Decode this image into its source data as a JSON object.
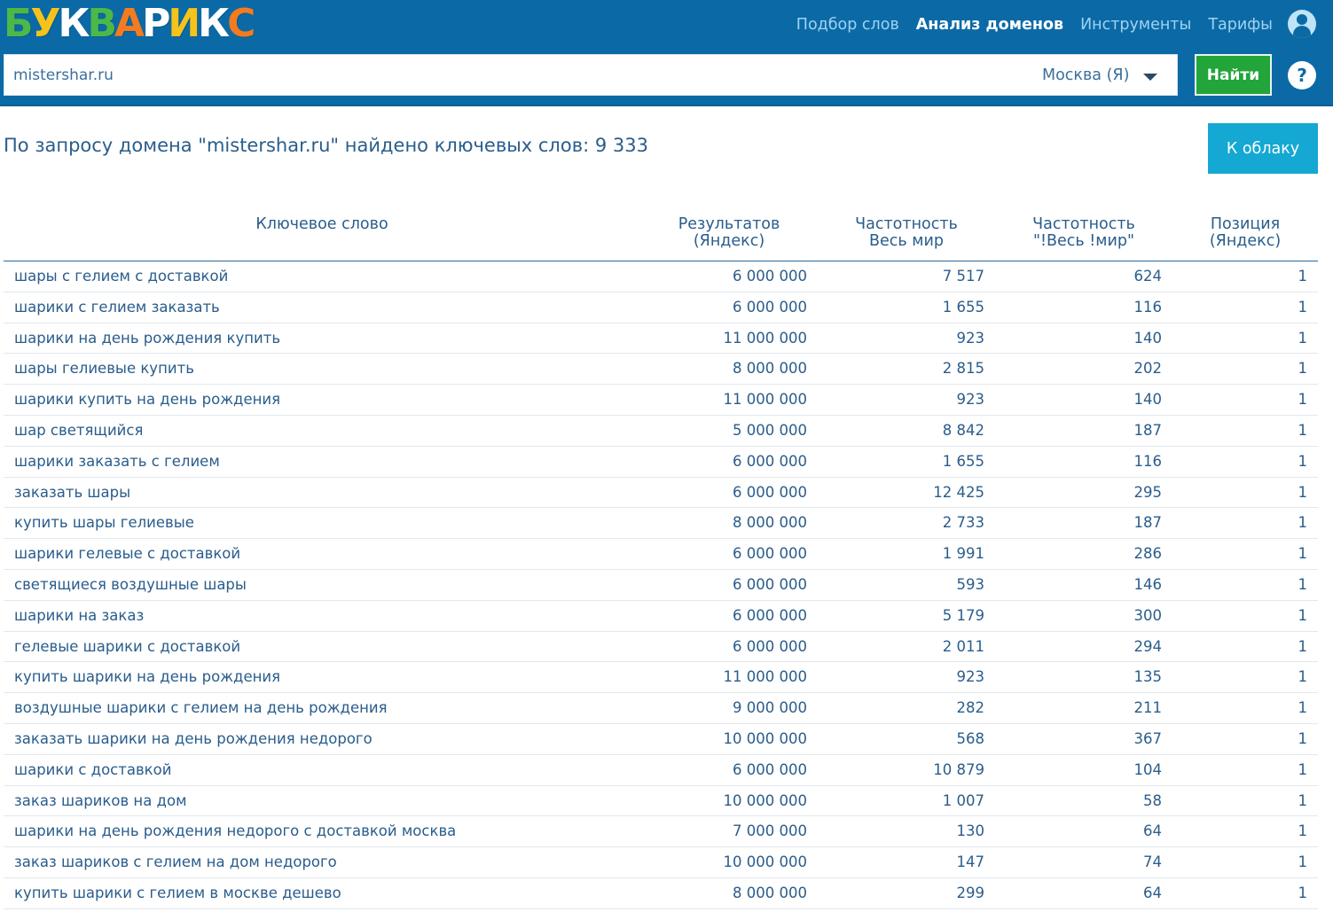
{
  "header": {
    "logo_letters": [
      {
        "char": "Б",
        "color": "#4cb848"
      },
      {
        "char": "У",
        "color": "#f6c31b"
      },
      {
        "char": "К",
        "color": "#ffffff"
      },
      {
        "char": "В",
        "color": "#4cb848"
      },
      {
        "char": "А",
        "color": "#f47b20"
      },
      {
        "char": "Р",
        "color": "#ffffff"
      },
      {
        "char": "И",
        "color": "#f6c31b"
      },
      {
        "char": "К",
        "color": "#ffffff"
      },
      {
        "char": "С",
        "color": "#f47b20"
      }
    ],
    "nav": [
      {
        "label": "Подбор слов",
        "active": false
      },
      {
        "label": "Анализ доменов",
        "active": true
      },
      {
        "label": "Инструменты",
        "active": false
      },
      {
        "label": "Тарифы",
        "active": false
      }
    ],
    "user_icon": "user-icon"
  },
  "search": {
    "value": "mistershar.ru",
    "region": "Москва (Я)",
    "find_label": "Найти",
    "help_label": "?"
  },
  "result_text": "По запросу домена \"mistershar.ru\" найдено ключевых слов: 9 333",
  "cloud_label": "К облаку",
  "table": {
    "headers": {
      "keyword": "Ключевое слово",
      "results": "Результатов\n(Яндекс)",
      "freq": "Частотность\nВесь мир",
      "freq_exact": "Частотность\n\"!Весь !мир\"",
      "position": "Позиция\n(Яндекс)"
    },
    "rows": [
      [
        "шары с гелием с доставкой",
        "6 000 000",
        "7 517",
        "624",
        "1"
      ],
      [
        "шарики с гелием заказать",
        "6 000 000",
        "1 655",
        "116",
        "1"
      ],
      [
        "шарики на день рождения купить",
        "11 000 000",
        "923",
        "140",
        "1"
      ],
      [
        "шары гелиевые купить",
        "8 000 000",
        "2 815",
        "202",
        "1"
      ],
      [
        "шарики купить на день рождения",
        "11 000 000",
        "923",
        "140",
        "1"
      ],
      [
        "шар светящийся",
        "5 000 000",
        "8 842",
        "187",
        "1"
      ],
      [
        "шарики заказать с гелием",
        "6 000 000",
        "1 655",
        "116",
        "1"
      ],
      [
        "заказать шары",
        "6 000 000",
        "12 425",
        "295",
        "1"
      ],
      [
        "купить шары гелиевые",
        "8 000 000",
        "2 733",
        "187",
        "1"
      ],
      [
        "шарики гелевые с доставкой",
        "6 000 000",
        "1 991",
        "286",
        "1"
      ],
      [
        "светящиеся воздушные шары",
        "6 000 000",
        "593",
        "146",
        "1"
      ],
      [
        "шарики на заказ",
        "6 000 000",
        "5 179",
        "300",
        "1"
      ],
      [
        "гелевые шарики с доставкой",
        "6 000 000",
        "2 011",
        "294",
        "1"
      ],
      [
        "купить шарики на день рождения",
        "11 000 000",
        "923",
        "135",
        "1"
      ],
      [
        "воздушные шарики с гелием на день рождения",
        "9 000 000",
        "282",
        "211",
        "1"
      ],
      [
        "заказать шарики на день рождения недорого",
        "10 000 000",
        "568",
        "367",
        "1"
      ],
      [
        "шарики с доставкой",
        "6 000 000",
        "10 879",
        "104",
        "1"
      ],
      [
        "заказ шариков на дом",
        "10 000 000",
        "1 007",
        "58",
        "1"
      ],
      [
        "шарики на день рождения недорого с доставкой москва",
        "7 000 000",
        "130",
        "64",
        "1"
      ],
      [
        "заказ шариков с гелием на дом недорого",
        "10 000 000",
        "147",
        "74",
        "1"
      ],
      [
        "купить шарики с гелием в москве дешево",
        "8 000 000",
        "299",
        "64",
        "1"
      ]
    ]
  }
}
